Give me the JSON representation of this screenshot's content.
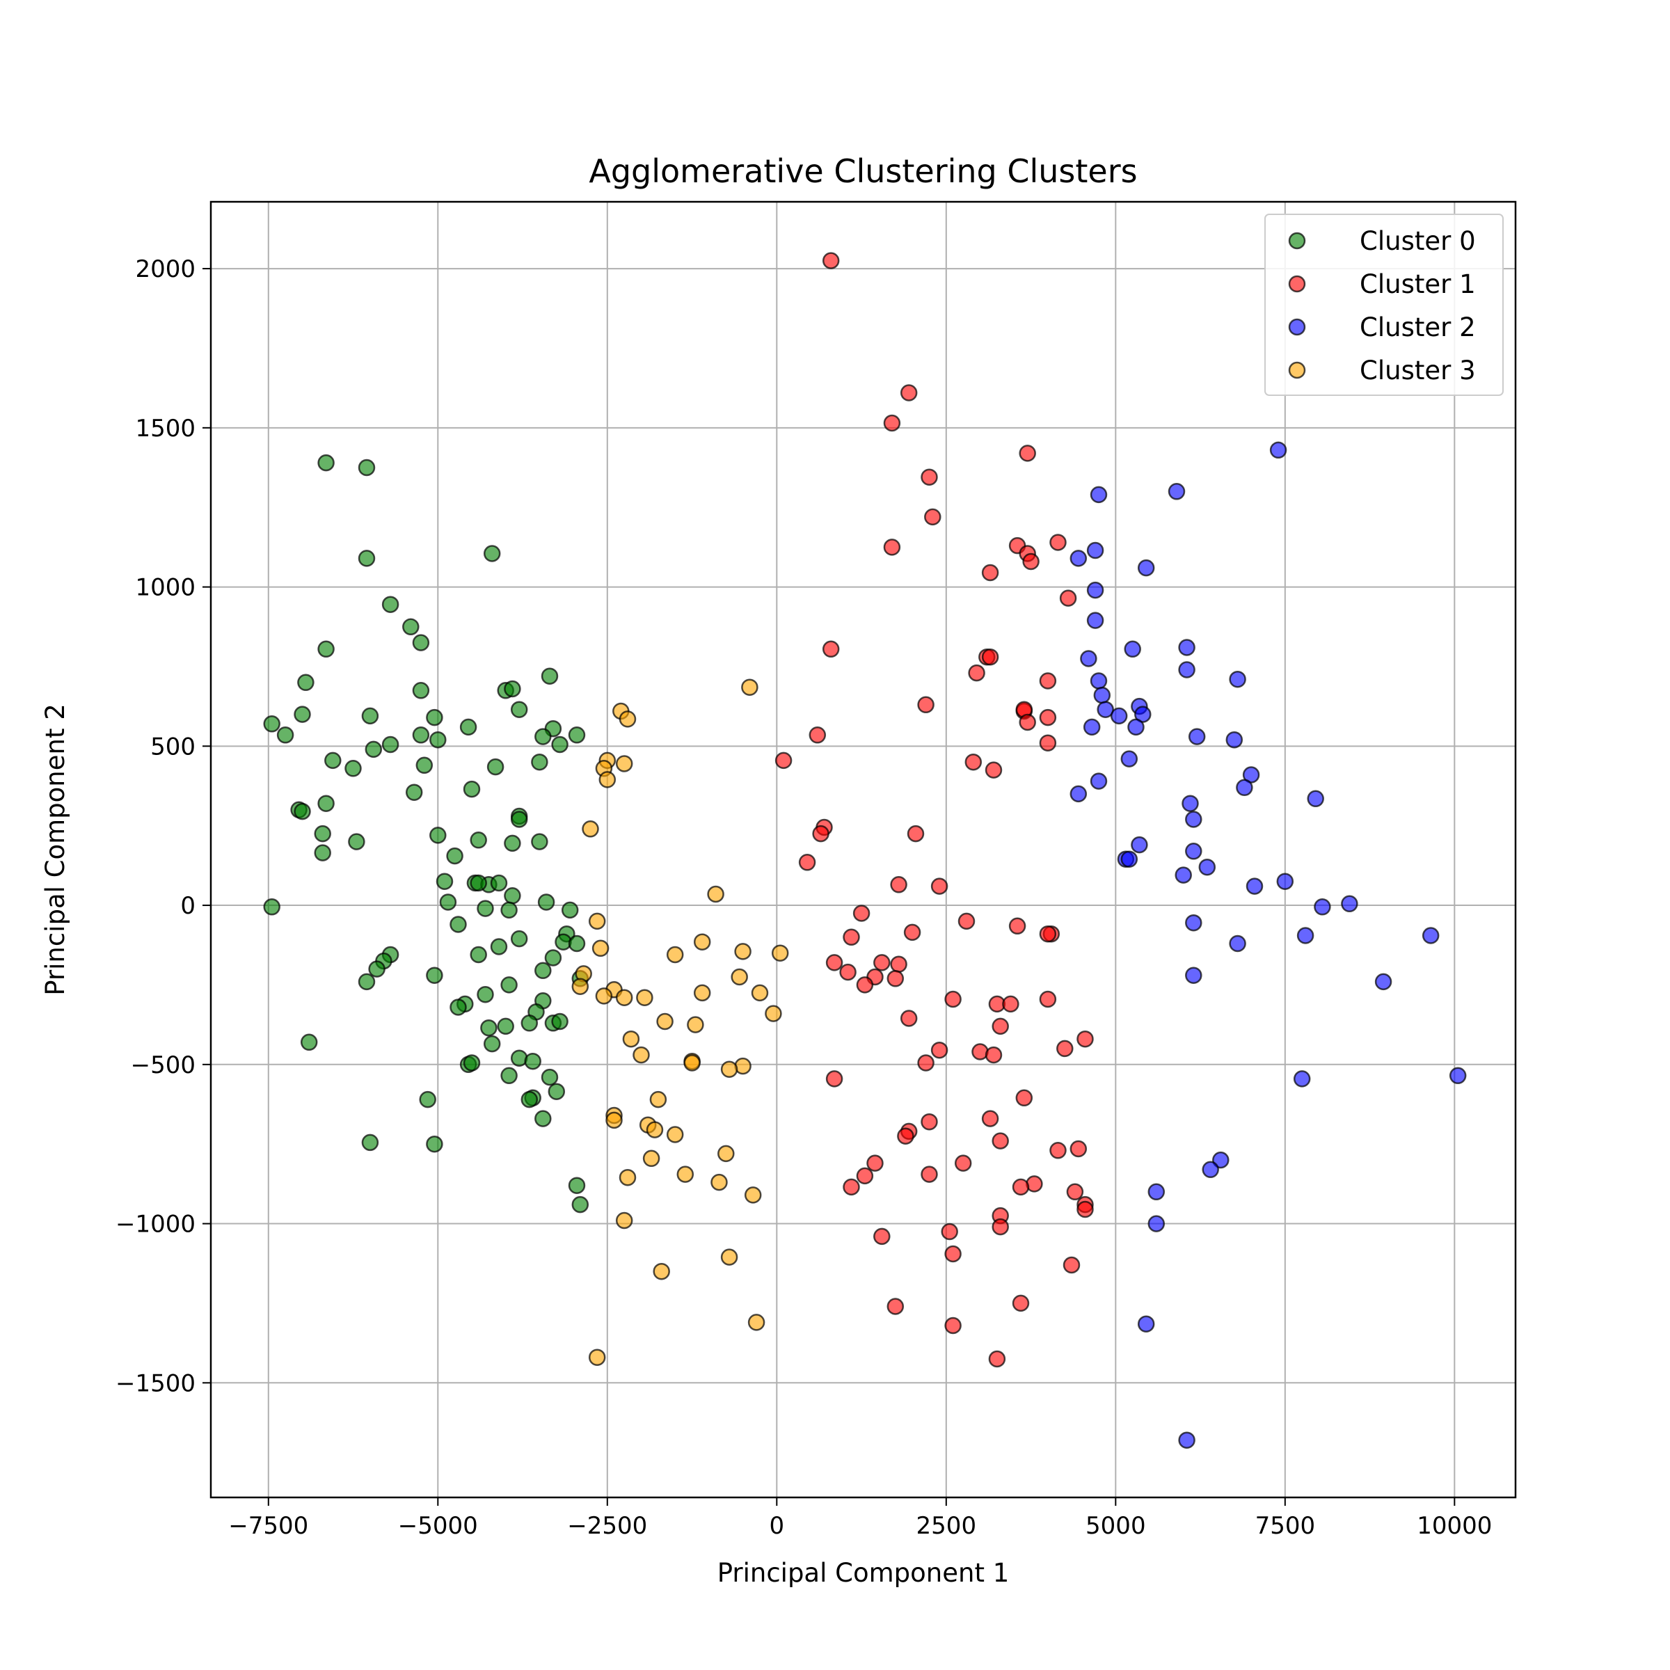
{
  "chart_data": {
    "type": "scatter",
    "title": "Agglomerative Clustering Clusters",
    "xlabel": "Principal Component 1",
    "ylabel": "Principal Component 2",
    "xlim": [
      -8350,
      10900
    ],
    "ylim": [
      -1860,
      2210
    ],
    "xticks": [
      -7500,
      -5000,
      -2500,
      0,
      2500,
      5000,
      7500,
      10000
    ],
    "xtick_labels": [
      "−7500",
      "−5000",
      "−2500",
      "0",
      "2500",
      "5000",
      "7500",
      "10000"
    ],
    "yticks": [
      -1500,
      -1000,
      -500,
      0,
      500,
      1000,
      1500,
      2000
    ],
    "ytick_labels": [
      "−1500",
      "−1000",
      "−500",
      "0",
      "500",
      "1000",
      "1500",
      "2000"
    ],
    "grid": true,
    "legend_position": "top-right",
    "series": [
      {
        "name": "Cluster 0",
        "color": "#008000",
        "points": [
          [
            -6650,
            1390
          ],
          [
            -6050,
            1375
          ],
          [
            -6050,
            1090
          ],
          [
            -4200,
            1105
          ],
          [
            -5700,
            945
          ],
          [
            -5400,
            875
          ],
          [
            -5250,
            825
          ],
          [
            -6650,
            805
          ],
          [
            -6950,
            700
          ],
          [
            -3350,
            720
          ],
          [
            -5250,
            675
          ],
          [
            -4000,
            675
          ],
          [
            -3900,
            680
          ],
          [
            -7000,
            600
          ],
          [
            -6000,
            595
          ],
          [
            -5050,
            590
          ],
          [
            -7450,
            570
          ],
          [
            -7250,
            535
          ],
          [
            -5250,
            535
          ],
          [
            -5000,
            520
          ],
          [
            -5700,
            505
          ],
          [
            -5950,
            490
          ],
          [
            -4550,
            560
          ],
          [
            -3300,
            555
          ],
          [
            -3450,
            530
          ],
          [
            -3200,
            505
          ],
          [
            -2950,
            535
          ],
          [
            -6550,
            455
          ],
          [
            -5200,
            440
          ],
          [
            -4150,
            435
          ],
          [
            -3500,
            450
          ],
          [
            -6250,
            430
          ],
          [
            -5350,
            355
          ],
          [
            -4500,
            365
          ],
          [
            -3800,
            615
          ],
          [
            -7050,
            300
          ],
          [
            -7000,
            295
          ],
          [
            -6650,
            320
          ],
          [
            -3800,
            280
          ],
          [
            -3800,
            270
          ],
          [
            -6700,
            225
          ],
          [
            -6200,
            200
          ],
          [
            -5000,
            220
          ],
          [
            -4400,
            205
          ],
          [
            -3900,
            195
          ],
          [
            -3500,
            200
          ],
          [
            -6700,
            165
          ],
          [
            -4750,
            155
          ],
          [
            -4900,
            75
          ],
          [
            -4450,
            70
          ],
          [
            -4250,
            65
          ],
          [
            -4100,
            70
          ],
          [
            -4400,
            70
          ],
          [
            -3900,
            30
          ],
          [
            -4850,
            10
          ],
          [
            -3400,
            10
          ],
          [
            -7450,
            -5
          ],
          [
            -4300,
            -10
          ],
          [
            -3950,
            -15
          ],
          [
            -3050,
            -15
          ],
          [
            -4700,
            -60
          ],
          [
            -3100,
            -90
          ],
          [
            -3800,
            -105
          ],
          [
            -3150,
            -115
          ],
          [
            -2950,
            -120
          ],
          [
            -4100,
            -130
          ],
          [
            -4400,
            -155
          ],
          [
            -5700,
            -155
          ],
          [
            -5800,
            -175
          ],
          [
            -3300,
            -165
          ],
          [
            -5900,
            -200
          ],
          [
            -3450,
            -205
          ],
          [
            -5050,
            -220
          ],
          [
            -2900,
            -230
          ],
          [
            -6050,
            -240
          ],
          [
            -3950,
            -250
          ],
          [
            -4300,
            -280
          ],
          [
            -4600,
            -310
          ],
          [
            -4700,
            -320
          ],
          [
            -3450,
            -300
          ],
          [
            -3550,
            -335
          ],
          [
            -3300,
            -370
          ],
          [
            -3200,
            -365
          ],
          [
            -3650,
            -370
          ],
          [
            -4000,
            -380
          ],
          [
            -4250,
            -385
          ],
          [
            -4200,
            -435
          ],
          [
            -6900,
            -430
          ],
          [
            -3800,
            -480
          ],
          [
            -3600,
            -490
          ],
          [
            -4550,
            -500
          ],
          [
            -4500,
            -495
          ],
          [
            -3950,
            -535
          ],
          [
            -3350,
            -540
          ],
          [
            -3250,
            -585
          ],
          [
            -3600,
            -605
          ],
          [
            -3650,
            -610
          ],
          [
            -5150,
            -610
          ],
          [
            -3450,
            -670
          ],
          [
            -6000,
            -745
          ],
          [
            -5050,
            -750
          ],
          [
            -2950,
            -880
          ],
          [
            -2900,
            -940
          ]
        ]
      },
      {
        "name": "Cluster 1",
        "color": "#ff0000",
        "points": [
          [
            800,
            2025
          ],
          [
            1950,
            1610
          ],
          [
            1700,
            1515
          ],
          [
            2250,
            1345
          ],
          [
            3700,
            1420
          ],
          [
            2300,
            1220
          ],
          [
            1700,
            1125
          ],
          [
            3550,
            1130
          ],
          [
            3700,
            1105
          ],
          [
            3750,
            1080
          ],
          [
            4150,
            1140
          ],
          [
            3150,
            1045
          ],
          [
            4300,
            965
          ],
          [
            800,
            805
          ],
          [
            3100,
            780
          ],
          [
            3150,
            780
          ],
          [
            2950,
            730
          ],
          [
            4000,
            705
          ],
          [
            3650,
            610
          ],
          [
            3650,
            615
          ],
          [
            3700,
            575
          ],
          [
            4000,
            590
          ],
          [
            2200,
            630
          ],
          [
            600,
            535
          ],
          [
            4000,
            510
          ],
          [
            100,
            455
          ],
          [
            2900,
            450
          ],
          [
            3200,
            425
          ],
          [
            700,
            245
          ],
          [
            650,
            225
          ],
          [
            2050,
            225
          ],
          [
            450,
            135
          ],
          [
            1800,
            65
          ],
          [
            2400,
            60
          ],
          [
            1250,
            -25
          ],
          [
            2800,
            -50
          ],
          [
            3550,
            -65
          ],
          [
            2000,
            -85
          ],
          [
            4050,
            -90
          ],
          [
            4000,
            -90
          ],
          [
            1100,
            -100
          ],
          [
            850,
            -180
          ],
          [
            1550,
            -180
          ],
          [
            1800,
            -185
          ],
          [
            1050,
            -210
          ],
          [
            1450,
            -225
          ],
          [
            1750,
            -230
          ],
          [
            1300,
            -250
          ],
          [
            2600,
            -295
          ],
          [
            4000,
            -295
          ],
          [
            3250,
            -310
          ],
          [
            3450,
            -310
          ],
          [
            1950,
            -355
          ],
          [
            3300,
            -380
          ],
          [
            4550,
            -420
          ],
          [
            4250,
            -450
          ],
          [
            2400,
            -455
          ],
          [
            3000,
            -460
          ],
          [
            3200,
            -470
          ],
          [
            2200,
            -495
          ],
          [
            850,
            -545
          ],
          [
            3650,
            -605
          ],
          [
            3150,
            -670
          ],
          [
            2250,
            -680
          ],
          [
            1950,
            -710
          ],
          [
            1900,
            -725
          ],
          [
            3300,
            -740
          ],
          [
            4150,
            -770
          ],
          [
            4450,
            -765
          ],
          [
            2750,
            -810
          ],
          [
            1450,
            -810
          ],
          [
            1300,
            -850
          ],
          [
            2250,
            -845
          ],
          [
            3800,
            -875
          ],
          [
            3600,
            -885
          ],
          [
            1100,
            -885
          ],
          [
            4400,
            -900
          ],
          [
            4550,
            -940
          ],
          [
            4550,
            -955
          ],
          [
            3300,
            -975
          ],
          [
            3300,
            -1010
          ],
          [
            2550,
            -1025
          ],
          [
            1550,
            -1040
          ],
          [
            2600,
            -1095
          ],
          [
            4350,
            -1130
          ],
          [
            1750,
            -1260
          ],
          [
            3600,
            -1250
          ],
          [
            2600,
            -1320
          ],
          [
            3250,
            -1425
          ]
        ]
      },
      {
        "name": "Cluster 2",
        "color": "#0000ff",
        "points": [
          [
            7400,
            1430
          ],
          [
            5900,
            1300
          ],
          [
            4750,
            1290
          ],
          [
            4450,
            1090
          ],
          [
            4700,
            1115
          ],
          [
            5450,
            1060
          ],
          [
            4700,
            990
          ],
          [
            4700,
            895
          ],
          [
            5250,
            805
          ],
          [
            6050,
            810
          ],
          [
            4600,
            775
          ],
          [
            6050,
            740
          ],
          [
            6800,
            710
          ],
          [
            4750,
            705
          ],
          [
            4800,
            660
          ],
          [
            4850,
            615
          ],
          [
            5050,
            595
          ],
          [
            5350,
            625
          ],
          [
            5400,
            600
          ],
          [
            5300,
            560
          ],
          [
            4650,
            560
          ],
          [
            6200,
            530
          ],
          [
            6750,
            520
          ],
          [
            5200,
            460
          ],
          [
            7000,
            410
          ],
          [
            6900,
            370
          ],
          [
            4750,
            390
          ],
          [
            4450,
            350
          ],
          [
            7950,
            335
          ],
          [
            6100,
            320
          ],
          [
            6150,
            270
          ],
          [
            5350,
            190
          ],
          [
            6150,
            170
          ],
          [
            5150,
            145
          ],
          [
            5200,
            145
          ],
          [
            6350,
            120
          ],
          [
            6000,
            95
          ],
          [
            7500,
            75
          ],
          [
            7050,
            60
          ],
          [
            8050,
            -5
          ],
          [
            8450,
            5
          ],
          [
            6150,
            -55
          ],
          [
            9650,
            -95
          ],
          [
            7800,
            -95
          ],
          [
            6800,
            -120
          ],
          [
            6150,
            -220
          ],
          [
            8950,
            -240
          ],
          [
            10050,
            -535
          ],
          [
            7750,
            -545
          ],
          [
            6550,
            -800
          ],
          [
            6400,
            -830
          ],
          [
            5600,
            -900
          ],
          [
            5600,
            -1000
          ],
          [
            5450,
            -1315
          ],
          [
            6050,
            -1680
          ]
        ]
      },
      {
        "name": "Cluster 3",
        "color": "#ffa500",
        "points": [
          [
            -400,
            685
          ],
          [
            -2300,
            610
          ],
          [
            -2200,
            585
          ],
          [
            -2500,
            455
          ],
          [
            -2550,
            430
          ],
          [
            -2250,
            445
          ],
          [
            -2500,
            395
          ],
          [
            -2750,
            240
          ],
          [
            -900,
            35
          ],
          [
            -2650,
            -50
          ],
          [
            -1100,
            -115
          ],
          [
            -2600,
            -135
          ],
          [
            -1500,
            -155
          ],
          [
            -500,
            -145
          ],
          [
            50,
            -150
          ],
          [
            -2850,
            -215
          ],
          [
            -2900,
            -255
          ],
          [
            -550,
            -225
          ],
          [
            -2400,
            -265
          ],
          [
            -2550,
            -285
          ],
          [
            -2250,
            -290
          ],
          [
            -1950,
            -290
          ],
          [
            -1100,
            -275
          ],
          [
            -250,
            -275
          ],
          [
            -50,
            -340
          ],
          [
            -1650,
            -365
          ],
          [
            -1200,
            -375
          ],
          [
            -2150,
            -420
          ],
          [
            -2000,
            -470
          ],
          [
            -1250,
            -490
          ],
          [
            -1250,
            -495
          ],
          [
            -500,
            -505
          ],
          [
            -700,
            -515
          ],
          [
            -1750,
            -610
          ],
          [
            -2400,
            -660
          ],
          [
            -2400,
            -675
          ],
          [
            -1900,
            -690
          ],
          [
            -1800,
            -705
          ],
          [
            -1500,
            -720
          ],
          [
            -750,
            -780
          ],
          [
            -1850,
            -795
          ],
          [
            -2200,
            -855
          ],
          [
            -1350,
            -845
          ],
          [
            -850,
            -870
          ],
          [
            -350,
            -910
          ],
          [
            -2250,
            -990
          ],
          [
            -700,
            -1105
          ],
          [
            -1700,
            -1150
          ],
          [
            -300,
            -1310
          ],
          [
            -2650,
            -1420
          ]
        ]
      }
    ]
  }
}
